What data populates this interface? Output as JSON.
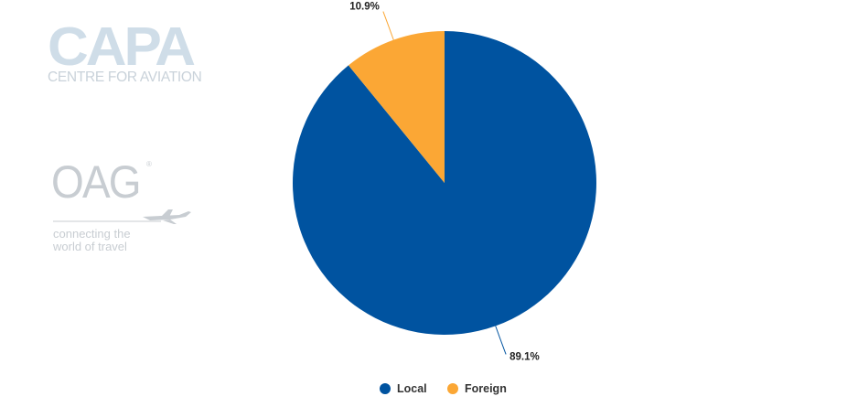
{
  "logos": {
    "capa": {
      "word": "CAPA",
      "subtitle": "CENTRE FOR AVIATION"
    },
    "oag": {
      "word": "OAG",
      "registered": "®",
      "tagline_line1": "connecting the",
      "tagline_line2": "world of travel",
      "icon": "airplane-icon"
    }
  },
  "chart_data": {
    "type": "pie",
    "categories": [
      "Local",
      "Foreign"
    ],
    "values": [
      89.1,
      10.9
    ],
    "data_labels": [
      "89.1%",
      "10.9%"
    ],
    "colors": [
      "#0053a0",
      "#fba735"
    ],
    "legend_placement": "bottom-center",
    "start_angle_deg": 0,
    "direction": "clockwise"
  },
  "legend": {
    "items": [
      {
        "label": "Local",
        "color": "#0053a0"
      },
      {
        "label": "Foreign",
        "color": "#fba735"
      }
    ]
  }
}
